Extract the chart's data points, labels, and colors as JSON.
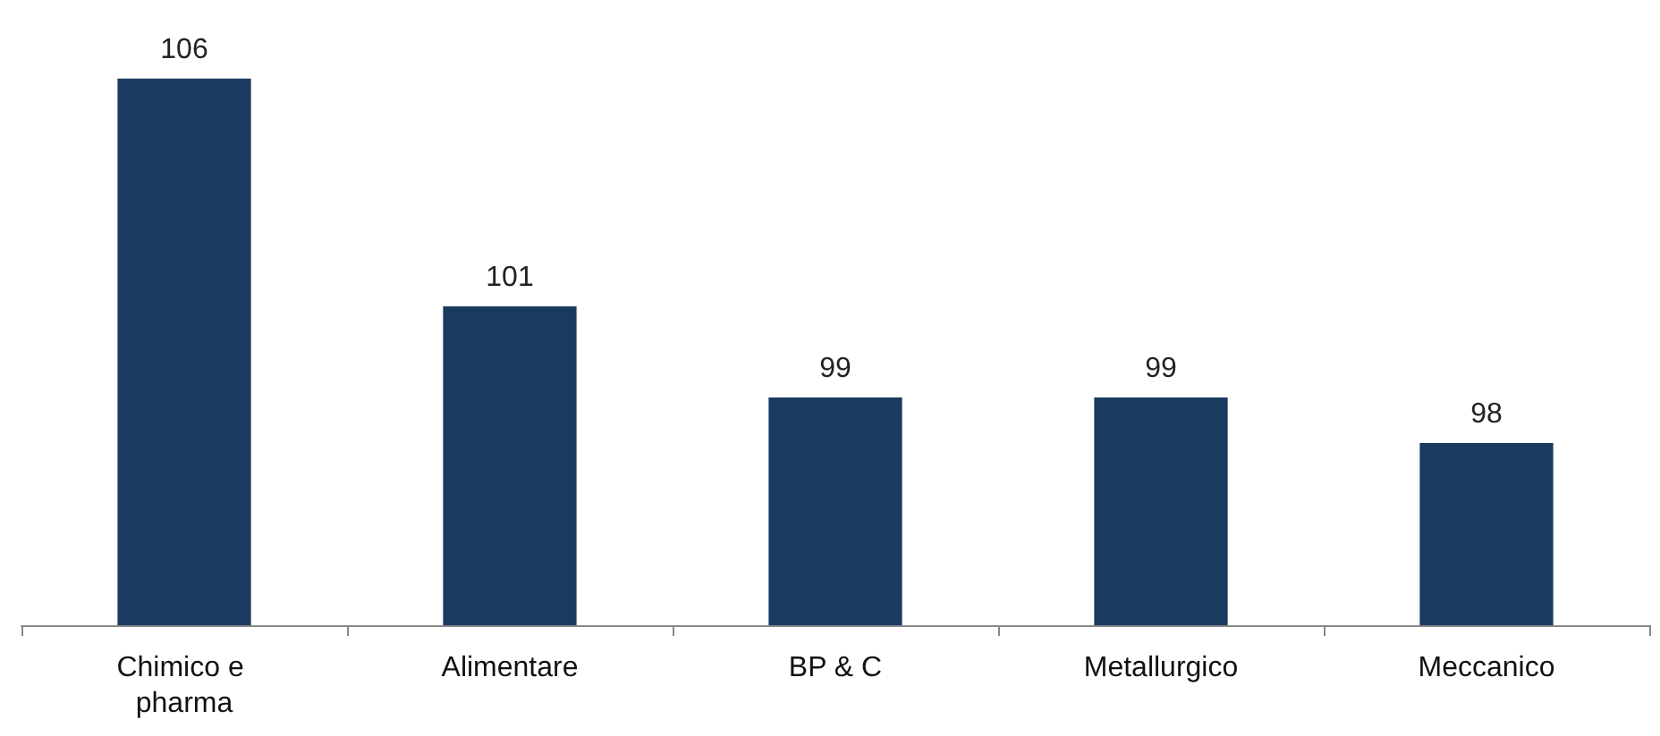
{
  "chart_data": {
    "type": "bar",
    "categories": [
      "Chimico e pharma",
      "Alimentare",
      "BP & C",
      "Metallurgico",
      "Meccanico"
    ],
    "values": [
      106,
      101,
      99,
      99,
      98
    ],
    "color": "#1b3a5f",
    "ylim": [
      94,
      106
    ],
    "data_labels": true,
    "grid": false
  }
}
